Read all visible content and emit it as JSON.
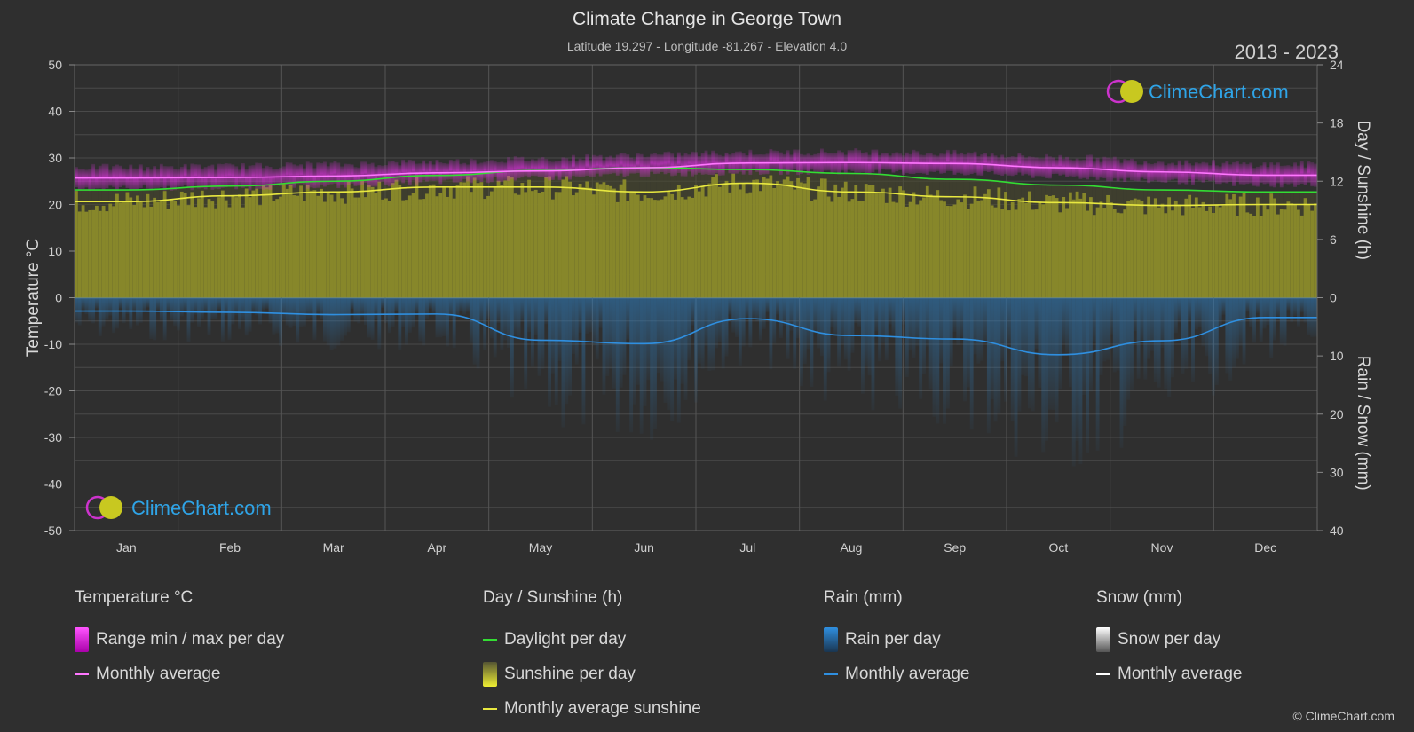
{
  "header": {
    "title": "Climate Change in George Town",
    "subtitle": "Latitude 19.297 - Longitude -81.267 - Elevation 4.0",
    "years": "2013 - 2023"
  },
  "watermark": "ClimeChart.com",
  "copyright": "© ClimeChart.com",
  "colors": {
    "background": "#2f2f2f",
    "temp_range": "#cc22cc",
    "temp_avg": "#ff77ff",
    "daylight": "#33dd33",
    "sunshine_fill": "#8b8b2a",
    "sunshine_avg": "#e8e840",
    "rain_bar": "#1e5f8c",
    "rain_avg": "#2f8fe0",
    "snow_avg": "#ffffff",
    "brand": "#2fa4e7"
  },
  "chart_data": {
    "type": "area",
    "months": [
      "Jan",
      "Feb",
      "Mar",
      "Apr",
      "May",
      "Jun",
      "Jul",
      "Aug",
      "Sep",
      "Oct",
      "Nov",
      "Dec"
    ],
    "left_axis": {
      "label": "Temperature °C",
      "min": -50,
      "max": 50,
      "ticks": [
        "50",
        "40",
        "30",
        "20",
        "10",
        "0",
        "-10",
        "-20",
        "-30",
        "-40",
        "-50"
      ]
    },
    "right_axis_top": {
      "label": "Day / Sunshine (h)",
      "min": 0,
      "max": 24,
      "ticks": [
        "24",
        "18",
        "12",
        "6",
        "0"
      ]
    },
    "right_axis_bottom": {
      "label": "Rain / Snow (mm)",
      "min": 0,
      "max": 40,
      "ticks": [
        "0",
        "10",
        "20",
        "30",
        "40"
      ]
    },
    "series": [
      {
        "name": "Monthly average",
        "group": "temperature",
        "unit": "°C",
        "values": [
          25.7,
          25.8,
          26.1,
          26.8,
          27.2,
          27.9,
          28.9,
          29.0,
          28.8,
          27.9,
          27.0,
          26.3
        ]
      },
      {
        "name": "Range min / max per day",
        "group": "temperature",
        "unit": "°C",
        "min": [
          23.5,
          23.6,
          24.0,
          24.8,
          25.6,
          26.4,
          26.9,
          27.0,
          26.8,
          26.0,
          25.0,
          24.2
        ],
        "max": [
          28.0,
          28.2,
          28.6,
          29.2,
          29.8,
          30.6,
          31.2,
          31.4,
          31.0,
          30.2,
          29.2,
          28.6
        ]
      },
      {
        "name": "Daylight per day",
        "group": "day",
        "unit": "h",
        "values": [
          11.1,
          11.5,
          12.0,
          12.6,
          13.1,
          13.4,
          13.2,
          12.8,
          12.2,
          11.6,
          11.1,
          10.9
        ]
      },
      {
        "name": "Monthly average sunshine",
        "group": "day",
        "unit": "h",
        "values": [
          9.9,
          10.5,
          10.9,
          11.4,
          11.4,
          10.9,
          11.8,
          10.9,
          10.4,
          9.8,
          9.5,
          9.6
        ]
      },
      {
        "name": "Monthly average",
        "group": "rain",
        "unit": "mm",
        "values": [
          2.3,
          2.5,
          2.9,
          2.8,
          7.3,
          7.9,
          3.6,
          6.5,
          7.1,
          9.8,
          7.4,
          3.4
        ]
      },
      {
        "name": "Monthly average",
        "group": "snow",
        "unit": "mm",
        "values": [
          0,
          0,
          0,
          0,
          0,
          0,
          0,
          0,
          0,
          0,
          0,
          0
        ]
      }
    ]
  },
  "legend": {
    "temperature": {
      "title": "Temperature °C",
      "items": [
        "Range min / max per day",
        "Monthly average"
      ]
    },
    "day": {
      "title": "Day / Sunshine (h)",
      "items": [
        "Daylight per day",
        "Sunshine per day",
        "Monthly average sunshine"
      ]
    },
    "rain": {
      "title": "Rain (mm)",
      "items": [
        "Rain per day",
        "Monthly average"
      ]
    },
    "snow": {
      "title": "Snow (mm)",
      "items": [
        "Snow per day",
        "Monthly average"
      ]
    }
  }
}
